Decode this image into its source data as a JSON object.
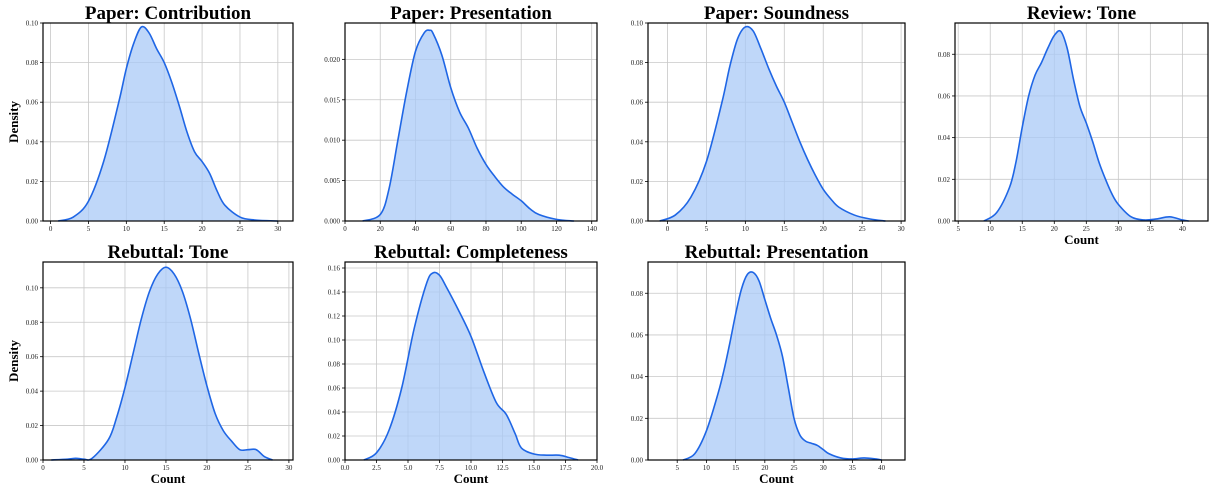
{
  "colors": {
    "line": "#1f66e5",
    "fill": "#a9c9f7"
  },
  "chart_data": [
    {
      "type": "area",
      "title": "Paper: Contribution",
      "xlabel": "",
      "ylabel": "Density",
      "xlim": [
        -1,
        32
      ],
      "ylim": [
        0,
        0.1
      ],
      "xticks": [
        0,
        5,
        10,
        15,
        20,
        25,
        30
      ],
      "yticks": [
        0.0,
        0.02,
        0.04,
        0.06,
        0.08,
        0.1
      ],
      "ytick_labels": [
        "0.00",
        "0.02",
        "0.04",
        "0.06",
        "0.08",
        "0.10"
      ],
      "x": [
        1,
        3,
        5,
        7,
        9,
        10,
        11,
        12,
        13,
        14,
        15,
        16,
        17,
        18,
        19,
        20,
        21,
        22,
        23,
        25,
        27,
        30
      ],
      "y": [
        0.0,
        0.002,
        0.01,
        0.03,
        0.06,
        0.077,
        0.09,
        0.098,
        0.095,
        0.087,
        0.08,
        0.07,
        0.058,
        0.045,
        0.035,
        0.03,
        0.024,
        0.015,
        0.008,
        0.002,
        0.0005,
        0.0
      ]
    },
    {
      "type": "area",
      "title": "Paper: Presentation",
      "xlabel": "",
      "ylabel": "",
      "xlim": [
        0,
        143
      ],
      "ylim": [
        0,
        0.0245
      ],
      "xticks": [
        0,
        20,
        40,
        60,
        80,
        100,
        120,
        140
      ],
      "yticks": [
        0.0,
        0.005,
        0.01,
        0.015,
        0.02
      ],
      "ytick_labels": [
        "0.000",
        "0.005",
        "0.010",
        "0.015",
        "0.020"
      ],
      "x": [
        10,
        20,
        25,
        30,
        35,
        40,
        45,
        48,
        50,
        55,
        60,
        65,
        70,
        75,
        80,
        85,
        90,
        95,
        100,
        105,
        110,
        120,
        130
      ],
      "y": [
        0.0,
        0.0008,
        0.004,
        0.01,
        0.016,
        0.021,
        0.0233,
        0.0236,
        0.0232,
        0.0205,
        0.0165,
        0.0135,
        0.0115,
        0.009,
        0.007,
        0.0055,
        0.0042,
        0.0033,
        0.0025,
        0.0015,
        0.0008,
        0.0002,
        0.0
      ]
    },
    {
      "type": "area",
      "title": "Paper: Soundness",
      "xlabel": "",
      "ylabel": "",
      "xlim": [
        -2.5,
        30.5
      ],
      "ylim": [
        0,
        0.1
      ],
      "xticks": [
        0,
        5,
        10,
        15,
        20,
        25,
        30
      ],
      "yticks": [
        0.0,
        0.02,
        0.04,
        0.06,
        0.08,
        0.1
      ],
      "ytick_labels": [
        "0.00",
        "0.02",
        "0.04",
        "0.06",
        "0.08",
        "0.10"
      ],
      "x": [
        -1,
        1,
        3,
        5,
        7,
        8,
        9,
        10,
        11,
        12,
        13,
        14,
        15,
        16,
        17,
        18,
        19,
        20,
        21,
        22,
        24,
        26,
        28
      ],
      "y": [
        0.0,
        0.003,
        0.012,
        0.03,
        0.06,
        0.078,
        0.092,
        0.098,
        0.096,
        0.087,
        0.077,
        0.068,
        0.06,
        0.05,
        0.04,
        0.031,
        0.023,
        0.016,
        0.011,
        0.007,
        0.003,
        0.001,
        0.0
      ]
    },
    {
      "type": "area",
      "title": "Review: Tone",
      "xlabel": "Count",
      "ylabel": "",
      "xlim": [
        4.5,
        44
      ],
      "ylim": [
        0,
        0.095
      ],
      "xticks": [
        5,
        10,
        15,
        20,
        25,
        30,
        35,
        40
      ],
      "yticks": [
        0.0,
        0.02,
        0.04,
        0.06,
        0.08
      ],
      "ytick_labels": [
        "0.00",
        "0.02",
        "0.04",
        "0.06",
        "0.08"
      ],
      "x": [
        9,
        11,
        13,
        14,
        15,
        16,
        17,
        18,
        19,
        20,
        21,
        22,
        23,
        24,
        25,
        26,
        27,
        28,
        29,
        30,
        32,
        34,
        36,
        38,
        40,
        41
      ],
      "y": [
        0.0,
        0.004,
        0.016,
        0.028,
        0.045,
        0.06,
        0.07,
        0.076,
        0.083,
        0.089,
        0.091,
        0.083,
        0.068,
        0.055,
        0.047,
        0.038,
        0.028,
        0.02,
        0.013,
        0.008,
        0.002,
        0.0005,
        0.001,
        0.002,
        0.0005,
        0.0
      ]
    },
    {
      "type": "area",
      "title": "Rebuttal: Tone",
      "xlabel": "Count",
      "ylabel": "Density",
      "xlim": [
        0,
        30.5
      ],
      "ylim": [
        0,
        0.115
      ],
      "xticks": [
        0,
        5,
        10,
        15,
        20,
        25,
        30
      ],
      "yticks": [
        0.0,
        0.02,
        0.04,
        0.06,
        0.08,
        0.1
      ],
      "ytick_labels": [
        "0.00",
        "0.02",
        "0.04",
        "0.06",
        "0.08",
        "0.10"
      ],
      "x": [
        1,
        3,
        4,
        5,
        6,
        8,
        9,
        10,
        11,
        12,
        13,
        14,
        15,
        16,
        17,
        18,
        19,
        20,
        21,
        22,
        23,
        24,
        25,
        26,
        27,
        28
      ],
      "y": [
        0.0,
        0.0005,
        0.001,
        0.0005,
        0.001,
        0.012,
        0.025,
        0.042,
        0.062,
        0.082,
        0.098,
        0.108,
        0.112,
        0.108,
        0.098,
        0.082,
        0.062,
        0.043,
        0.027,
        0.017,
        0.011,
        0.006,
        0.006,
        0.006,
        0.002,
        0.0
      ]
    },
    {
      "type": "area",
      "title": "Rebuttal: Completeness",
      "xlabel": "Count",
      "ylabel": "",
      "xlim": [
        0,
        20
      ],
      "ylim": [
        0,
        0.165
      ],
      "xticks": [
        0.0,
        2.5,
        5.0,
        7.5,
        10.0,
        12.5,
        15.0,
        17.5,
        20.0
      ],
      "yticks": [
        0.0,
        0.02,
        0.04,
        0.06,
        0.08,
        0.1,
        0.12,
        0.14,
        0.16
      ],
      "ytick_labels": [
        "0.00",
        "0.02",
        "0.04",
        "0.06",
        "0.08",
        "0.10",
        "0.12",
        "0.14",
        "0.16"
      ],
      "x": [
        1.5,
        2.5,
        3.5,
        4.5,
        5.5,
        6.5,
        7.0,
        7.5,
        8.0,
        9.0,
        10.0,
        11.0,
        12.0,
        12.8,
        13.5,
        14.0,
        15.0,
        16.0,
        17.0,
        17.8,
        18.5
      ],
      "y": [
        0.0,
        0.006,
        0.025,
        0.06,
        0.11,
        0.148,
        0.156,
        0.154,
        0.145,
        0.125,
        0.103,
        0.074,
        0.048,
        0.038,
        0.022,
        0.01,
        0.005,
        0.004,
        0.004,
        0.002,
        0.0
      ]
    },
    {
      "type": "area",
      "title": "Rebuttal: Presentation",
      "xlabel": "Count",
      "ylabel": "",
      "xlim": [
        0,
        44
      ],
      "ylim": [
        0,
        0.095
      ],
      "xticks": [
        5,
        10,
        15,
        20,
        25,
        30,
        35,
        40
      ],
      "yticks": [
        0.0,
        0.02,
        0.04,
        0.06,
        0.08
      ],
      "ytick_labels": [
        "0.00",
        "0.02",
        "0.04",
        "0.06",
        "0.08"
      ],
      "x": [
        6,
        8,
        10,
        12,
        13,
        14,
        15,
        16,
        17,
        18,
        19,
        20,
        21,
        22,
        23,
        24,
        25,
        26,
        27,
        28,
        29,
        30,
        31,
        33,
        35,
        37,
        39,
        40
      ],
      "y": [
        0.0,
        0.003,
        0.014,
        0.032,
        0.043,
        0.056,
        0.07,
        0.082,
        0.089,
        0.09,
        0.086,
        0.077,
        0.068,
        0.06,
        0.05,
        0.035,
        0.02,
        0.012,
        0.009,
        0.008,
        0.007,
        0.005,
        0.003,
        0.001,
        0.0005,
        0.001,
        0.0005,
        0.0
      ]
    }
  ]
}
